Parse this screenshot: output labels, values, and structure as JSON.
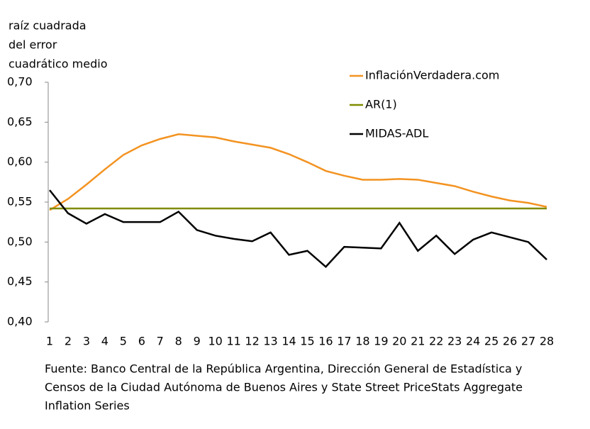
{
  "chart_data": {
    "type": "line",
    "ylabel": [
      "raíz cuadrada",
      "del error",
      "cuadrático medio"
    ],
    "x": [
      1,
      2,
      3,
      4,
      5,
      6,
      7,
      8,
      9,
      10,
      11,
      12,
      13,
      14,
      15,
      16,
      17,
      18,
      19,
      20,
      21,
      22,
      23,
      24,
      25,
      26,
      27,
      28
    ],
    "xlim": [
      1,
      28
    ],
    "xticks": [
      1,
      2,
      3,
      4,
      5,
      6,
      7,
      8,
      9,
      10,
      11,
      12,
      13,
      14,
      15,
      16,
      17,
      18,
      19,
      20,
      21,
      22,
      23,
      24,
      25,
      26,
      27,
      28
    ],
    "ylim": [
      0.4,
      0.7
    ],
    "yticks": [
      {
        "value": 0.4,
        "label": "0,40"
      },
      {
        "value": 0.45,
        "label": "0,45"
      },
      {
        "value": 0.5,
        "label": "0,50"
      },
      {
        "value": 0.55,
        "label": "0,55"
      },
      {
        "value": 0.6,
        "label": "0,60"
      },
      {
        "value": 0.65,
        "label": "0,65"
      },
      {
        "value": 0.7,
        "label": "0,70"
      }
    ],
    "legend_position": "upper right",
    "series": [
      {
        "name": "InflaciónVerdadera.com",
        "color": "#f39321",
        "values": [
          0.54,
          0.554,
          0.572,
          0.591,
          0.609,
          0.621,
          0.629,
          0.635,
          0.633,
          0.631,
          0.626,
          0.622,
          0.618,
          0.61,
          0.6,
          0.589,
          0.583,
          0.578,
          0.578,
          0.579,
          0.578,
          0.574,
          0.57,
          0.563,
          0.557,
          0.552,
          0.549,
          0.544
        ]
      },
      {
        "name": "AR(1)",
        "color": "#7f8c00",
        "values": [
          0.542,
          0.542,
          0.542,
          0.542,
          0.542,
          0.542,
          0.542,
          0.542,
          0.542,
          0.542,
          0.542,
          0.542,
          0.542,
          0.542,
          0.542,
          0.542,
          0.542,
          0.542,
          0.542,
          0.542,
          0.542,
          0.542,
          0.542,
          0.542,
          0.542,
          0.542,
          0.542,
          0.542
        ]
      },
      {
        "name": "MIDAS-ADL",
        "color": "#000000",
        "values": [
          0.565,
          0.536,
          0.523,
          0.535,
          0.525,
          0.525,
          0.525,
          0.538,
          0.515,
          0.508,
          0.504,
          0.501,
          0.512,
          0.484,
          0.489,
          0.469,
          0.494,
          0.493,
          0.492,
          0.524,
          0.489,
          0.508,
          0.485,
          0.503,
          0.512,
          0.506,
          0.5,
          0.478
        ]
      }
    ],
    "source": [
      "Fuente: Banco Central de la República Argentina, Dirección General de Estadística y",
      "Censos de la Ciudad Autónoma de Buenos Aires y State Street PriceStats Aggregate",
      "Inflation Series"
    ]
  }
}
